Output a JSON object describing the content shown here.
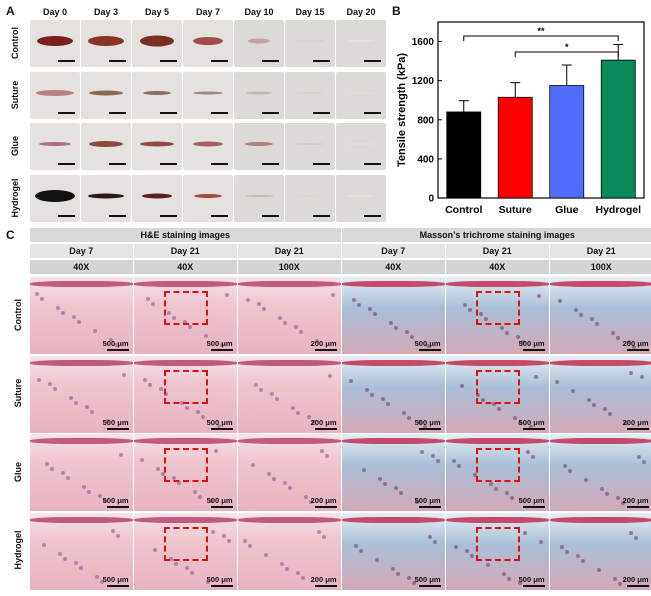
{
  "panel_a": {
    "letter": "A",
    "days": [
      "Day 0",
      "Day 3",
      "Day 5",
      "Day 7",
      "Day 10",
      "Day 15",
      "Day 20"
    ],
    "groups": [
      "Control",
      "Suture",
      "Glue",
      "Hydrogel"
    ]
  },
  "panel_b": {
    "letter": "B",
    "chart_data": {
      "type": "bar",
      "categories": [
        "Control",
        "Suture",
        "Glue",
        "Hydrogel"
      ],
      "values": [
        880,
        1030,
        1150,
        1410
      ],
      "errors": [
        115,
        150,
        210,
        160
      ],
      "colors": [
        "#000000",
        "#ff0000",
        "#4f6eff",
        "#0a8a5a"
      ],
      "ylabel": "Tensile strength (kPa)",
      "ylim": [
        0,
        1800
      ],
      "yticks": [
        0,
        400,
        800,
        1200,
        1600
      ],
      "significance": [
        {
          "from": "Control",
          "to": "Hydrogel",
          "label": "**"
        },
        {
          "from": "Suture",
          "to": "Hydrogel",
          "label": "*"
        }
      ]
    }
  },
  "panel_c": {
    "letter": "C",
    "groups": [
      {
        "title": "H&E staining images",
        "columns": [
          {
            "day": "Day 7",
            "mag": "40X"
          },
          {
            "day": "Day 21",
            "mag": "40X"
          },
          {
            "day": "Day 21",
            "mag": "100X"
          }
        ]
      },
      {
        "title": "Masson’s trichrome staining images",
        "columns": [
          {
            "day": "Day 7",
            "mag": "40X"
          },
          {
            "day": "Day 21",
            "mag": "40X"
          },
          {
            "day": "Day 21",
            "mag": "100X"
          }
        ]
      }
    ],
    "rows": [
      "Control",
      "Suture",
      "Glue",
      "Hydrogel"
    ],
    "scale_labels": [
      "500 μm",
      "500 μm",
      "200 μm",
      "500 μm",
      "500 μm",
      "200 μm"
    ]
  },
  "colors": {
    "he_bg": "#efc6cf",
    "he_epi": "#c25a7e",
    "masson_bg": "#a9bfd6",
    "masson_epi": "#c44a6a",
    "roi": "#e01010"
  }
}
